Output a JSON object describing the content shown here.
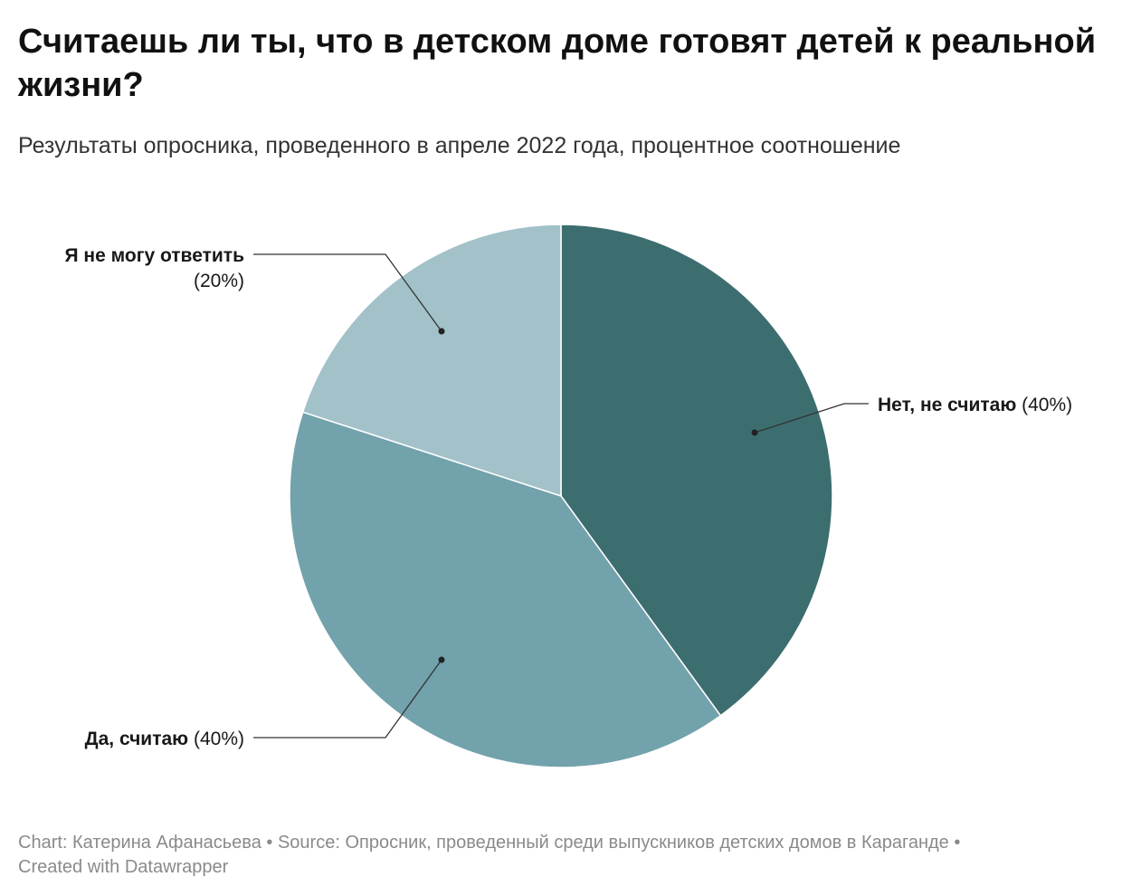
{
  "title": "Считаешь ли ты, что в детском доме готовят детей к реальной жизни?",
  "subtitle": "Результаты опросника, проведенного в апреле 2022 года, процентное соотношение",
  "chart_data": {
    "type": "pie",
    "unit": "%",
    "slices": [
      {
        "label": "Нет, не считаю",
        "value": 40,
        "display": "(40%)",
        "color": "#3d6e6f"
      },
      {
        "label": "Да, считаю",
        "value": 40,
        "display": "(40%)",
        "color": "#72a2ac"
      },
      {
        "label": "Я не могу ответить",
        "value": 20,
        "display": "(20%)",
        "color": "#a2c1c8"
      }
    ]
  },
  "footer": {
    "chart_label": "Chart:",
    "author": "Катерина Афанасьева",
    "source_label": "Source:",
    "source": "Опросник, проведенный среди выпускников детских домов в Караганде",
    "created_with": "Created with Datawrapper",
    "separator": "•"
  }
}
